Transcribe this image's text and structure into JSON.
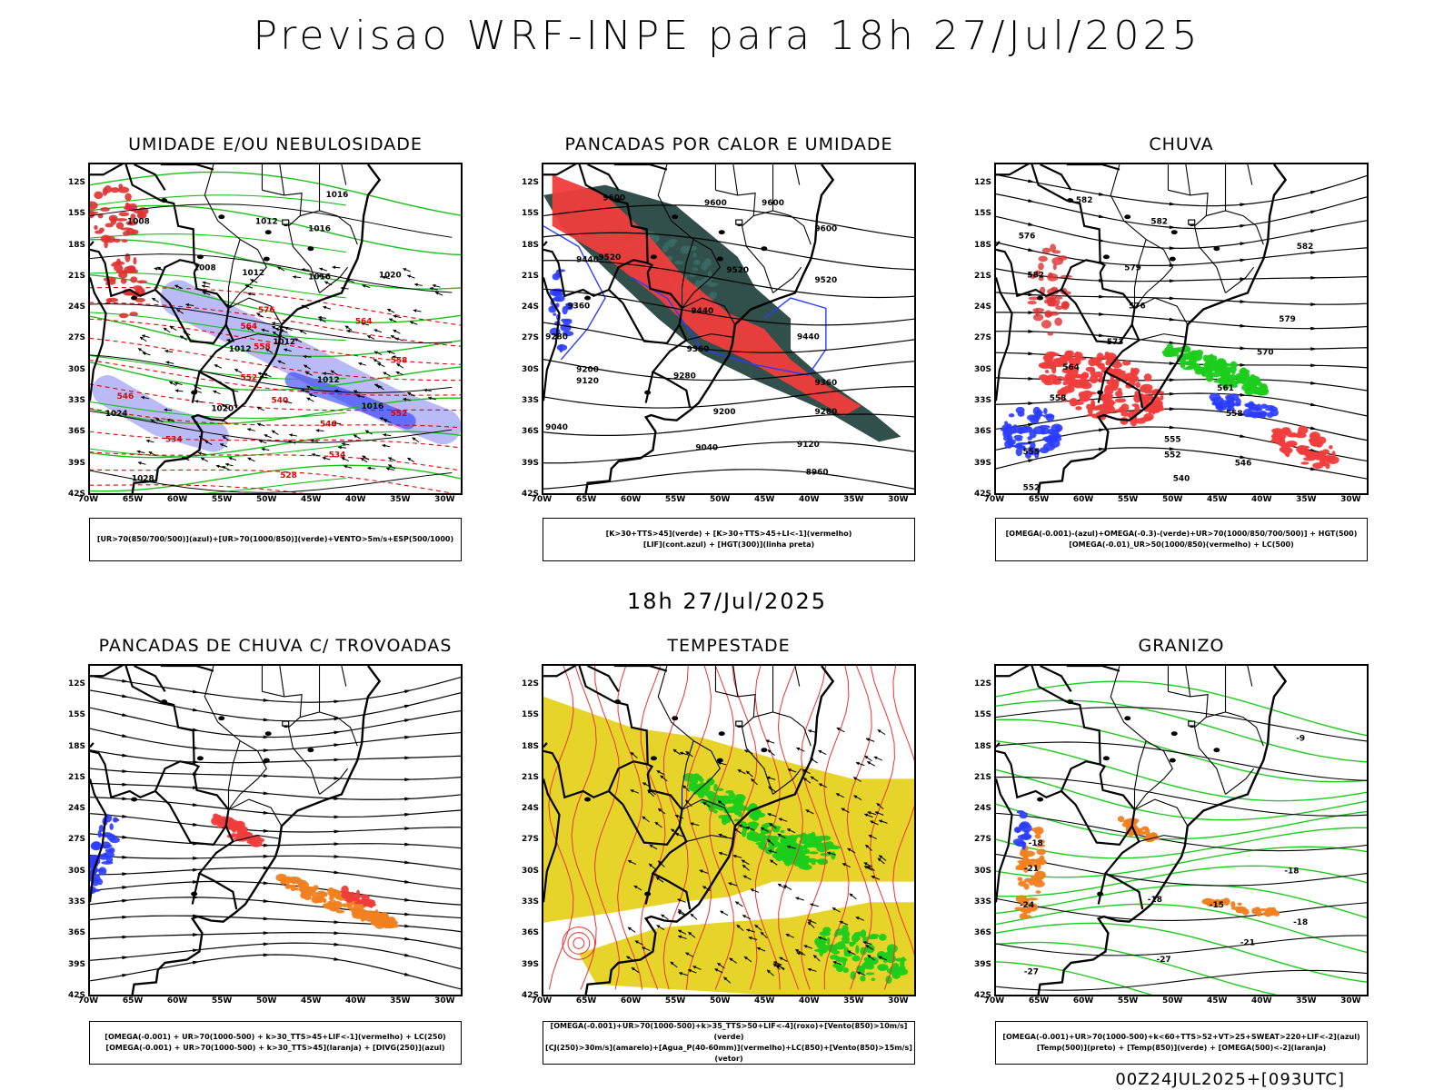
{
  "main_title": "Previsao WRF-INPE  para 18h 27/Jul/2025",
  "mid_title": "18h 27/Jul/2025",
  "footer": "00Z24JUL2025+[093UTC]",
  "y_ticks": [
    "12S",
    "15S",
    "18S",
    "21S",
    "24S",
    "27S",
    "30S",
    "33S",
    "36S",
    "39S",
    "42S"
  ],
  "x_ticks": [
    "70W",
    "65W",
    "60W",
    "55W",
    "50W",
    "45W",
    "40W",
    "35W",
    "30W"
  ],
  "panels": [
    {
      "title": "UMIDADE E/OU NEBULOSIDADE",
      "legend": [
        "[UR>70(850/700/500)](azul)+[UR>70(1000/850)](verde)+VENTO>5m/s+ESP(500/1000)"
      ],
      "labels": [
        {
          "t": "1016",
          "lon": -42,
          "lat": -13.2,
          "c": "#000"
        },
        {
          "t": "1008",
          "lon": -64.5,
          "lat": -15.8,
          "c": "#000"
        },
        {
          "t": "1012",
          "lon": -50,
          "lat": -15.8,
          "c": "#000"
        },
        {
          "t": "1016",
          "lon": -44,
          "lat": -16.5,
          "c": "#000"
        },
        {
          "t": "1008",
          "lon": -57,
          "lat": -20.3,
          "c": "#000"
        },
        {
          "t": "1012",
          "lon": -51.5,
          "lat": -20.8,
          "c": "#000"
        },
        {
          "t": "1016",
          "lon": -44,
          "lat": -21.2,
          "c": "#000"
        },
        {
          "t": "1020",
          "lon": -36,
          "lat": -21.0,
          "c": "#000"
        },
        {
          "t": "1012",
          "lon": -48,
          "lat": -27.5,
          "c": "#000"
        },
        {
          "t": "1012",
          "lon": -53,
          "lat": -28.2,
          "c": "#000"
        },
        {
          "t": "1012",
          "lon": -43,
          "lat": -31.2,
          "c": "#000"
        },
        {
          "t": "1024",
          "lon": -67,
          "lat": -34.5,
          "c": "#000"
        },
        {
          "t": "1020",
          "lon": -55,
          "lat": -34.0,
          "c": "#000"
        },
        {
          "t": "1016",
          "lon": -38,
          "lat": -33.8,
          "c": "#000"
        },
        {
          "t": "1028",
          "lon": -64,
          "lat": -40.8,
          "c": "#000"
        },
        {
          "t": "576",
          "lon": -50,
          "lat": -24.4,
          "c": "#e00000"
        },
        {
          "t": "564",
          "lon": -52,
          "lat": -26.0,
          "c": "#e00000"
        },
        {
          "t": "558",
          "lon": -50.5,
          "lat": -28.0,
          "c": "#e00000"
        },
        {
          "t": "552",
          "lon": -52,
          "lat": -31.0,
          "c": "#e00000"
        },
        {
          "t": "546",
          "lon": -66,
          "lat": -32.8,
          "c": "#e00000"
        },
        {
          "t": "540",
          "lon": -48.5,
          "lat": -33.2,
          "c": "#e00000"
        },
        {
          "t": "546",
          "lon": -43,
          "lat": -35.5,
          "c": "#e00000"
        },
        {
          "t": "534",
          "lon": -60.5,
          "lat": -37.0,
          "c": "#e00000"
        },
        {
          "t": "534",
          "lon": -42,
          "lat": -38.5,
          "c": "#e00000"
        },
        {
          "t": "528",
          "lon": -47.5,
          "lat": -40.5,
          "c": "#e00000"
        },
        {
          "t": "552",
          "lon": -35,
          "lat": -34.5,
          "c": "#e00000"
        },
        {
          "t": "558",
          "lon": -35,
          "lat": -29.3,
          "c": "#e00000"
        },
        {
          "t": "564",
          "lon": -39,
          "lat": -25.5,
          "c": "#e00000"
        }
      ]
    },
    {
      "title": "PANCADAS POR CALOR E UMIDADE",
      "legend": [
        "[K>30+TTS>45](verde) + [K>30+TTS>45+LI<-1](vermelho)",
        "[LIF](cont.azul) + [HGT(300)](linha preta)"
      ],
      "labels": [
        {
          "t": "9600",
          "lon": -62,
          "lat": -13.5,
          "c": "#000"
        },
        {
          "t": "9600",
          "lon": -50.5,
          "lat": -14.0,
          "c": "#000"
        },
        {
          "t": "9600",
          "lon": -44,
          "lat": -14.0,
          "c": "#000"
        },
        {
          "t": "9600",
          "lon": -38,
          "lat": -16.5,
          "c": "#000"
        },
        {
          "t": "9440",
          "lon": -65,
          "lat": -19.5,
          "c": "#000"
        },
        {
          "t": "9520",
          "lon": -62.5,
          "lat": -19.3,
          "c": "#000"
        },
        {
          "t": "9520",
          "lon": -48,
          "lat": -20.5,
          "c": "#000"
        },
        {
          "t": "9520",
          "lon": -38,
          "lat": -21.5,
          "c": "#000"
        },
        {
          "t": "9360",
          "lon": -66,
          "lat": -24.0,
          "c": "#000"
        },
        {
          "t": "9440",
          "lon": -52,
          "lat": -24.5,
          "c": "#000"
        },
        {
          "t": "9280",
          "lon": -68.5,
          "lat": -27.0,
          "c": "#000"
        },
        {
          "t": "9360",
          "lon": -52.5,
          "lat": -28.2,
          "c": "#000"
        },
        {
          "t": "9440",
          "lon": -40,
          "lat": -27.0,
          "c": "#000"
        },
        {
          "t": "9200",
          "lon": -65,
          "lat": -30.2,
          "c": "#000"
        },
        {
          "t": "9120",
          "lon": -65,
          "lat": -31.3,
          "c": "#000"
        },
        {
          "t": "9280",
          "lon": -54,
          "lat": -30.8,
          "c": "#000"
        },
        {
          "t": "9360",
          "lon": -38,
          "lat": -31.5,
          "c": "#000"
        },
        {
          "t": "9200",
          "lon": -49.5,
          "lat": -34.3,
          "c": "#000"
        },
        {
          "t": "9280",
          "lon": -38,
          "lat": -34.3,
          "c": "#000"
        },
        {
          "t": "9040",
          "lon": -68.5,
          "lat": -35.8,
          "c": "#000"
        },
        {
          "t": "9040",
          "lon": -51.5,
          "lat": -37.8,
          "c": "#000"
        },
        {
          "t": "9120",
          "lon": -40,
          "lat": -37.5,
          "c": "#000"
        },
        {
          "t": "8960",
          "lon": -39,
          "lat": -40.2,
          "c": "#000"
        }
      ]
    },
    {
      "title": "CHUVA",
      "legend": [
        "[OMEGA(-0.001)-(azul)+OMEGA(-0.3)-(verde)+UR>70(1000/850/700/500)] + HGT(500)",
        "[OMEGA(-0.01)_UR>50(1000/850)(vermelho) + LC(500)"
      ],
      "labels": [
        {
          "t": "582",
          "lon": -60,
          "lat": -13.7,
          "c": "#000"
        },
        {
          "t": "582",
          "lon": -51.5,
          "lat": -15.8,
          "c": "#000"
        },
        {
          "t": "576",
          "lon": -66.5,
          "lat": -17.2,
          "c": "#000"
        },
        {
          "t": "582",
          "lon": -35,
          "lat": -18.2,
          "c": "#000"
        },
        {
          "t": "582",
          "lon": -65.5,
          "lat": -21.0,
          "c": "#000"
        },
        {
          "t": "579",
          "lon": -54.5,
          "lat": -20.3,
          "c": "#000"
        },
        {
          "t": "576",
          "lon": -54,
          "lat": -24.0,
          "c": "#000"
        },
        {
          "t": "579",
          "lon": -37,
          "lat": -25.3,
          "c": "#000"
        },
        {
          "t": "573",
          "lon": -56.5,
          "lat": -27.5,
          "c": "#000"
        },
        {
          "t": "570",
          "lon": -39.5,
          "lat": -28.5,
          "c": "#000"
        },
        {
          "t": "564",
          "lon": -61.5,
          "lat": -30.0,
          "c": "#000"
        },
        {
          "t": "561",
          "lon": -44,
          "lat": -32.0,
          "c": "#000"
        },
        {
          "t": "558",
          "lon": -63,
          "lat": -33.0,
          "c": "#000"
        },
        {
          "t": "558",
          "lon": -43,
          "lat": -34.5,
          "c": "#000"
        },
        {
          "t": "555",
          "lon": -50,
          "lat": -37.0,
          "c": "#000"
        },
        {
          "t": "555",
          "lon": -66,
          "lat": -38.2,
          "c": "#000"
        },
        {
          "t": "552",
          "lon": -50,
          "lat": -38.5,
          "c": "#000"
        },
        {
          "t": "546",
          "lon": -42,
          "lat": -39.3,
          "c": "#000"
        },
        {
          "t": "540",
          "lon": -49,
          "lat": -40.8,
          "c": "#000"
        },
        {
          "t": "552",
          "lon": -66,
          "lat": -41.7,
          "c": "#000"
        }
      ]
    },
    {
      "title": "PANCADAS DE CHUVA C/ TROVOADAS",
      "legend": [
        "[OMEGA(-0.001) + UR>70(1000-500) + k>30_TTS>45+LIF<-1](vermelho) + LC(250)",
        "[OMEGA(-0.001) + UR>70(1000-500) + k>30_TTS>45](laranja) + [DIVG(250)](azul)"
      ],
      "labels": []
    },
    {
      "title": "TEMPESTADE",
      "legend": [
        "[OMEGA(-0.001)+UR>70(1000-500)+k>35_TTS>50+LIF<-4](roxo)+[Vento(850)>10m/s](verde)",
        "[CJ(250)>30m/s](amarelo)+[Agua_P(40-60mm)](vermelho)+LC(850)+[Vento(850)>15m/s](vetor)"
      ],
      "labels": []
    },
    {
      "title": "GRANIZO",
      "legend": [
        "[OMEGA(-0.001)+UR>70(1000-500)+k<60+TTS>52+VT>25+SWEAT>220+LIF<-2](azul)",
        "[Temp(500)](preto) + [Temp(850)](verde) + [OMEGA(500)<-2](laranja)"
      ],
      "labels": [
        {
          "t": "-9",
          "lon": -35.5,
          "lat": -17.3,
          "c": "#000"
        },
        {
          "t": "-18",
          "lon": -65.5,
          "lat": -27.5,
          "c": "#000"
        },
        {
          "t": "-21",
          "lon": -66,
          "lat": -30.0,
          "c": "#000"
        },
        {
          "t": "-18",
          "lon": -52,
          "lat": -33.0,
          "c": "#000"
        },
        {
          "t": "-15",
          "lon": -45,
          "lat": -33.5,
          "c": "#000"
        },
        {
          "t": "-18",
          "lon": -36.5,
          "lat": -30.2,
          "c": "#000"
        },
        {
          "t": "-24",
          "lon": -66.5,
          "lat": -33.5,
          "c": "#000"
        },
        {
          "t": "-18",
          "lon": -35.5,
          "lat": -35.2,
          "c": "#000"
        },
        {
          "t": "-21",
          "lon": -41.5,
          "lat": -37.2,
          "c": "#000"
        },
        {
          "t": "-27",
          "lon": -51,
          "lat": -38.8,
          "c": "#000"
        },
        {
          "t": "-27",
          "lon": -66,
          "lat": -40.0,
          "c": "#000"
        }
      ]
    }
  ],
  "colors": {
    "blue": "#2a3cff",
    "lavender": "#a9a9f5",
    "green": "#1ccc1c",
    "red": "#f03c3c",
    "orange": "#f08020",
    "yellow": "#e6d42a",
    "teal": "#20403c",
    "black": "#000000"
  }
}
